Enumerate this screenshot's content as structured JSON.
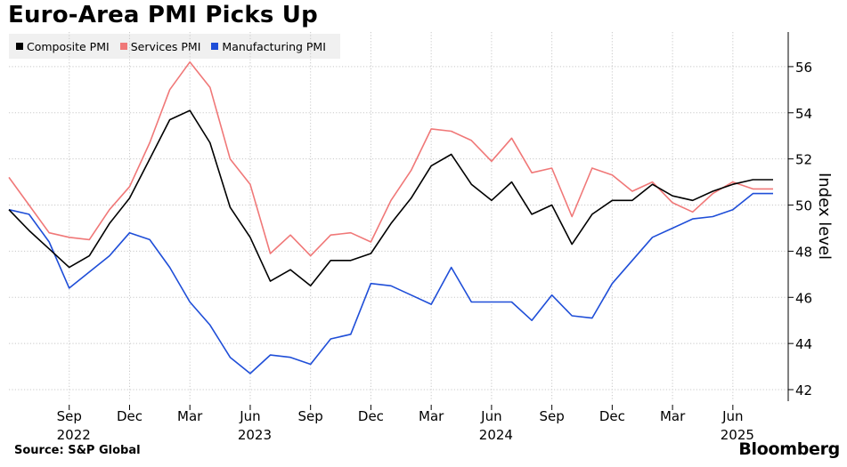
{
  "chart_data": {
    "type": "line",
    "title": "Euro-Area PMI Picks Up",
    "ylabel": "Index level",
    "xlabel": "",
    "ylim": [
      41.5,
      57.5
    ],
    "yticks": [
      42,
      44,
      46,
      48,
      50,
      52,
      54,
      56
    ],
    "x": [
      "2022-06",
      "2022-07",
      "2022-08",
      "2022-09",
      "2022-10",
      "2022-11",
      "2022-12",
      "2023-01",
      "2023-02",
      "2023-03",
      "2023-04",
      "2023-05",
      "2023-06",
      "2023-07",
      "2023-08",
      "2023-09",
      "2023-10",
      "2023-11",
      "2023-12",
      "2024-01",
      "2024-02",
      "2024-03",
      "2024-04",
      "2024-05",
      "2024-06",
      "2024-07",
      "2024-08",
      "2024-09",
      "2024-10",
      "2024-11",
      "2024-12",
      "2025-01",
      "2025-02",
      "2025-03",
      "2025-04",
      "2025-05",
      "2025-06",
      "2025-07",
      "2025-08"
    ],
    "xticks": [
      {
        "month": "Sep",
        "year": "2022",
        "at": "2022-09"
      },
      {
        "month": "Dec",
        "year": "",
        "at": "2022-12"
      },
      {
        "month": "Mar",
        "year": "",
        "at": "2023-03"
      },
      {
        "month": "Jun",
        "year": "2023",
        "at": "2023-06"
      },
      {
        "month": "Sep",
        "year": "",
        "at": "2023-09"
      },
      {
        "month": "Dec",
        "year": "",
        "at": "2023-12"
      },
      {
        "month": "Mar",
        "year": "",
        "at": "2024-03"
      },
      {
        "month": "Jun",
        "year": "2024",
        "at": "2024-06"
      },
      {
        "month": "Sep",
        "year": "",
        "at": "2024-09"
      },
      {
        "month": "Dec",
        "year": "",
        "at": "2024-12"
      },
      {
        "month": "Mar",
        "year": "",
        "at": "2025-03"
      },
      {
        "month": "Jun",
        "year": "2025",
        "at": "2025-06"
      }
    ],
    "grid": true,
    "legend": "top-left",
    "series": [
      {
        "name": "Composite PMI",
        "color": "#000000",
        "values": [
          49.8,
          48.9,
          48.1,
          47.3,
          47.8,
          49.2,
          50.3,
          52.0,
          53.7,
          54.1,
          52.7,
          49.9,
          48.6,
          46.7,
          47.2,
          46.5,
          47.6,
          47.6,
          47.9,
          49.2,
          50.3,
          51.7,
          52.2,
          50.9,
          50.2,
          51.0,
          49.6,
          50.0,
          48.3,
          49.6,
          50.2,
          50.2,
          50.9,
          50.4,
          50.2,
          50.6,
          50.9,
          51.1,
          51.1
        ]
      },
      {
        "name": "Services PMI",
        "color": "#f07878",
        "values": [
          51.2,
          50.0,
          48.8,
          48.6,
          48.5,
          49.8,
          50.8,
          52.7,
          55.0,
          56.2,
          55.1,
          52.0,
          50.9,
          47.9,
          48.7,
          47.8,
          48.7,
          48.8,
          48.4,
          50.2,
          51.5,
          53.3,
          53.2,
          52.8,
          51.9,
          52.9,
          51.4,
          51.6,
          49.5,
          51.6,
          51.3,
          50.6,
          51.0,
          50.1,
          49.7,
          50.5,
          51.0,
          50.7,
          50.7
        ]
      },
      {
        "name": "Manufacturing PMI",
        "color": "#1f4ed8",
        "values": [
          49.8,
          49.6,
          48.4,
          46.4,
          47.1,
          47.8,
          48.8,
          48.5,
          47.3,
          45.8,
          44.8,
          43.4,
          42.7,
          43.5,
          43.4,
          43.1,
          44.2,
          44.4,
          46.6,
          46.5,
          46.1,
          45.7,
          47.3,
          45.8,
          45.8,
          45.8,
          45.0,
          46.1,
          45.2,
          45.1,
          46.6,
          47.6,
          48.6,
          49.0,
          49.4,
          49.5,
          49.8,
          50.5,
          50.5
        ]
      }
    ]
  },
  "source": "Source: S&P Global",
  "logo": "Bloomberg"
}
